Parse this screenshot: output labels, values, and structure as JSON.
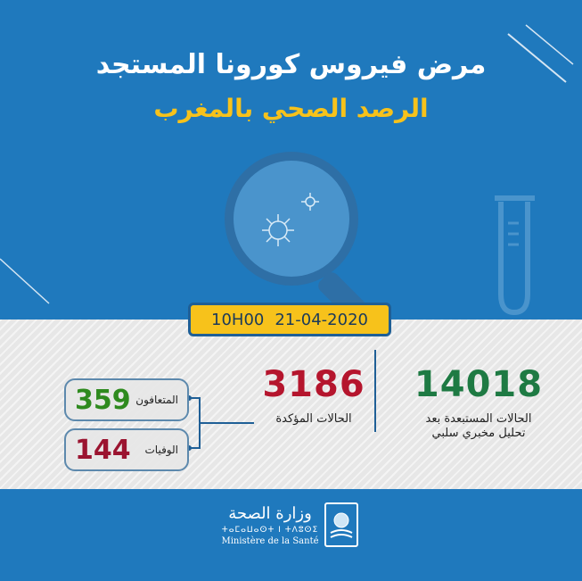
{
  "header": {
    "title": "مرض فيروس كورونا المستجد",
    "subtitle": "الرصد الصحي بالمغرب"
  },
  "date_box": {
    "time": "10H00",
    "date": "21-04-2020"
  },
  "stats": {
    "excluded": {
      "value": "14018",
      "label_line1": "الحالات المستبعدة بعد",
      "label_line2": "تحليل مخبري سلبي"
    },
    "confirmed": {
      "value": "3186",
      "label": "الحالات المؤكدة"
    },
    "recovered": {
      "value": "359",
      "label": "المتعافون"
    },
    "deaths": {
      "value": "144",
      "label": "الوفيات"
    }
  },
  "footer": {
    "ministry_ar": "وزارة الصحة",
    "ministry_tf": "ⵜⴰⵎⴰⵡⴰⵙⵜ ⵏ ⵜⴷⵓⵙⵉ",
    "ministry_fr": "Ministère de la Santé"
  },
  "colors": {
    "background": "#1f79bd",
    "accent_yellow": "#f7c21b",
    "excluded": "#1e7a43",
    "confirmed": "#b5152d",
    "recovered": "#2e8a1e",
    "deaths": "#9b1430"
  },
  "icons": [
    "magnifier-icon",
    "virus-icon",
    "test-tube-icon",
    "ministry-emblem-icon"
  ]
}
